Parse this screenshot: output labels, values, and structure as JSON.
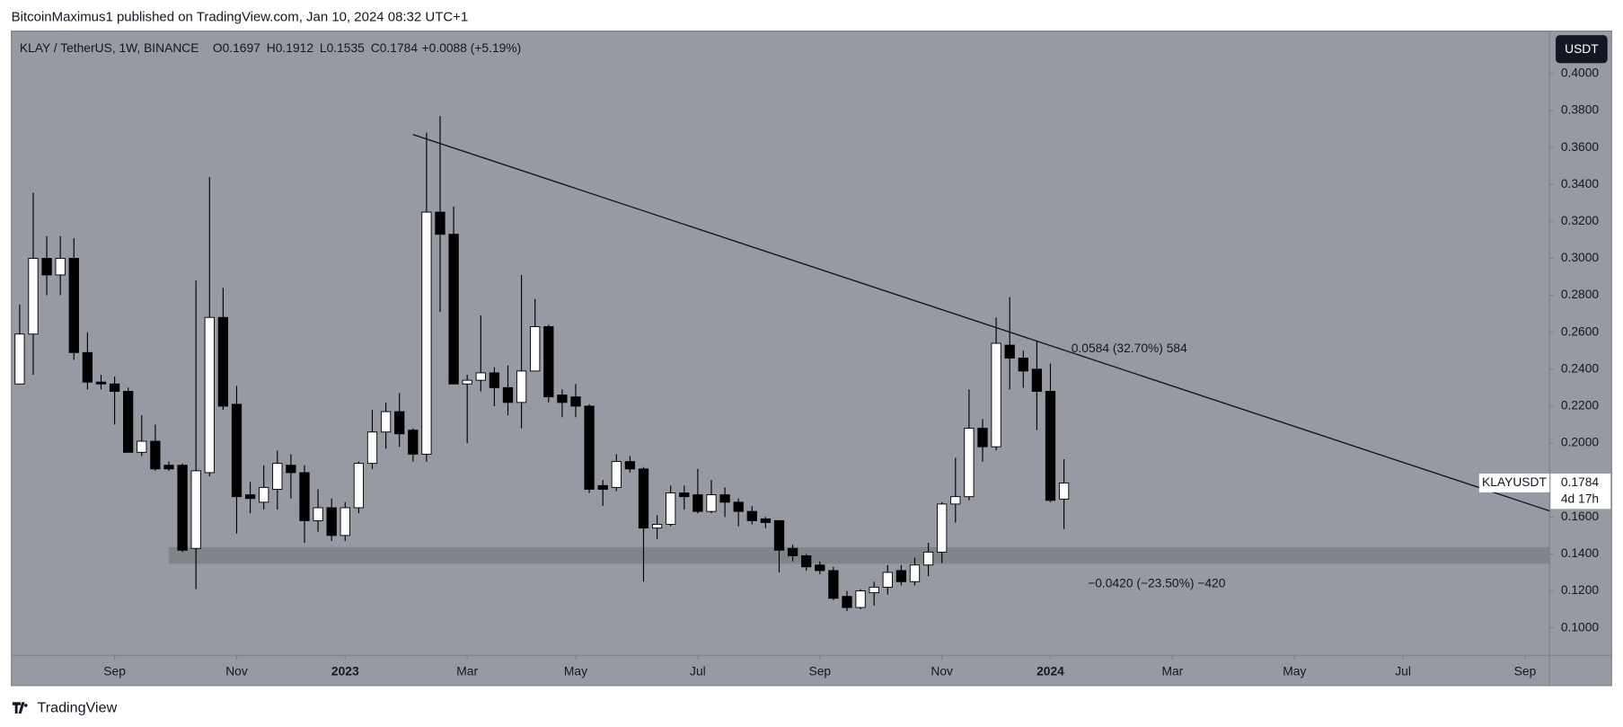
{
  "header": {
    "text": "BitcoinMaximus1 published on TradingView.com, Jan 10, 2024 08:32 UTC+1"
  },
  "footer": {
    "brand": "TradingView"
  },
  "currency_button": "USDT",
  "legend": {
    "symbol": "KLAY / TetherUS, 1W, BINANCE",
    "fields": [
      {
        "key": "O",
        "value": "0.1697"
      },
      {
        "key": "H",
        "value": "0.1912"
      },
      {
        "key": "L",
        "value": "0.1535"
      },
      {
        "key": "C",
        "value": "0.1784"
      }
    ],
    "change": "+0.0088 (+5.19%)"
  },
  "last_price": {
    "symbol": "KLAYUSDT",
    "price": "0.1784",
    "countdown": "4d 17h"
  },
  "chart_data": {
    "type": "candlestick",
    "bull_color": "#ffffff",
    "bear_color": "#000000",
    "open": [
      0.232,
      0.259,
      0.3,
      0.291,
      0.3,
      0.249,
      0.233,
      0.232,
      0.228,
      0.195,
      0.201,
      0.188,
      0.188,
      0.143,
      0.184,
      0.268,
      0.221,
      0.172,
      0.168,
      0.175,
      0.188,
      0.184,
      0.158,
      0.165,
      0.15,
      0.165,
      0.189,
      0.206,
      0.217,
      0.207,
      0.194,
      0.325,
      0.313,
      0.232,
      0.234,
      0.238,
      0.23,
      0.222,
      0.239,
      0.263,
      0.226,
      0.225,
      0.22,
      0.177,
      0.176,
      0.19,
      0.186,
      0.154,
      0.156,
      0.173,
      0.172,
      0.163,
      0.172,
      0.168,
      0.163,
      0.159,
      0.158,
      0.143,
      0.139,
      0.134,
      0.131,
      0.117,
      0.111,
      0.119,
      0.122,
      0.131,
      0.125,
      0.134,
      0.141,
      0.167,
      0.171,
      0.208,
      0.198,
      0.253,
      0.246,
      0.24,
      0.228,
      0.1697
    ],
    "high": [
      0.275,
      0.3355,
      0.312,
      0.312,
      0.311,
      0.26,
      0.237,
      0.236,
      0.23,
      0.215,
      0.21,
      0.19,
      0.189,
      0.288,
      0.344,
      0.284,
      0.231,
      0.179,
      0.188,
      0.196,
      0.194,
      0.188,
      0.175,
      0.17,
      0.168,
      0.19,
      0.218,
      0.222,
      0.227,
      0.208,
      0.368,
      0.377,
      0.328,
      0.237,
      0.269,
      0.241,
      0.242,
      0.291,
      0.278,
      0.264,
      0.229,
      0.232,
      0.221,
      0.18,
      0.194,
      0.193,
      0.187,
      0.161,
      0.177,
      0.177,
      0.186,
      0.18,
      0.176,
      0.17,
      0.166,
      0.16,
      0.158,
      0.145,
      0.14,
      0.136,
      0.133,
      0.12,
      0.121,
      0.125,
      0.134,
      0.134,
      0.138,
      0.146,
      0.168,
      0.192,
      0.229,
      0.213,
      0.268,
      0.279,
      0.25,
      0.255,
      0.243,
      0.1912
    ],
    "low": [
      0.232,
      0.237,
      0.28,
      0.28,
      0.245,
      0.229,
      0.229,
      0.21,
      0.195,
      0.193,
      0.185,
      0.185,
      0.141,
      0.121,
      0.182,
      0.218,
      0.151,
      0.162,
      0.164,
      0.164,
      0.17,
      0.146,
      0.152,
      0.147,
      0.147,
      0.162,
      0.186,
      0.197,
      0.198,
      0.19,
      0.19,
      0.271,
      0.232,
      0.2,
      0.228,
      0.22,
      0.215,
      0.208,
      0.239,
      0.222,
      0.214,
      0.214,
      0.173,
      0.166,
      0.174,
      0.184,
      0.125,
      0.148,
      0.155,
      0.164,
      0.162,
      0.162,
      0.16,
      0.155,
      0.156,
      0.154,
      0.13,
      0.136,
      0.131,
      0.129,
      0.115,
      0.109,
      0.11,
      0.112,
      0.118,
      0.123,
      0.123,
      0.128,
      0.135,
      0.157,
      0.169,
      0.19,
      0.196,
      0.229,
      0.23,
      0.207,
      0.168,
      0.1535
    ],
    "close": [
      0.259,
      0.3,
      0.291,
      0.3,
      0.249,
      0.233,
      0.232,
      0.228,
      0.195,
      0.201,
      0.186,
      0.186,
      0.142,
      0.185,
      0.268,
      0.22,
      0.171,
      0.17,
      0.176,
      0.189,
      0.184,
      0.158,
      0.165,
      0.15,
      0.165,
      0.189,
      0.206,
      0.217,
      0.205,
      0.194,
      0.325,
      0.313,
      0.232,
      0.234,
      0.238,
      0.23,
      0.222,
      0.239,
      0.263,
      0.225,
      0.222,
      0.22,
      0.175,
      0.175,
      0.19,
      0.186,
      0.154,
      0.156,
      0.173,
      0.171,
      0.163,
      0.172,
      0.168,
      0.163,
      0.158,
      0.157,
      0.142,
      0.139,
      0.133,
      0.131,
      0.116,
      0.111,
      0.12,
      0.122,
      0.13,
      0.125,
      0.134,
      0.141,
      0.167,
      0.171,
      0.208,
      0.198,
      0.254,
      0.246,
      0.239,
      0.228,
      0.169,
      0.1784
    ],
    "xlim": [
      -0.61,
      112.8
    ],
    "xticks": [
      {
        "value": 7,
        "label": "Sep"
      },
      {
        "value": 16,
        "label": "Nov"
      },
      {
        "value": 24,
        "label": "2023"
      },
      {
        "value": 33,
        "label": "Mar"
      },
      {
        "value": 41,
        "label": "May"
      },
      {
        "value": 50,
        "label": "Jul"
      },
      {
        "value": 59,
        "label": "Sep"
      },
      {
        "value": 68,
        "label": "Nov"
      },
      {
        "value": 76,
        "label": "2024"
      },
      {
        "value": 85,
        "label": "Mar"
      },
      {
        "value": 94,
        "label": "May"
      },
      {
        "value": 102,
        "label": "Jul"
      },
      {
        "value": 111,
        "label": "Sep"
      }
    ],
    "ylim": [
      0.085,
      0.423
    ],
    "yticks": [
      {
        "value": 0.1,
        "label": "0.1000"
      },
      {
        "value": 0.12,
        "label": "0.1200"
      },
      {
        "value": 0.14,
        "label": "0.1400"
      },
      {
        "value": 0.16,
        "label": "0.1600"
      },
      {
        "value": 0.18,
        "label": "0.1800"
      },
      {
        "value": 0.2,
        "label": "0.2000"
      },
      {
        "value": 0.22,
        "label": "0.2200"
      },
      {
        "value": 0.24,
        "label": "0.2400"
      },
      {
        "value": 0.26,
        "label": "0.2600"
      },
      {
        "value": 0.28,
        "label": "0.2800"
      },
      {
        "value": 0.3,
        "label": "0.3000"
      },
      {
        "value": 0.32,
        "label": "0.3200"
      },
      {
        "value": 0.34,
        "label": "0.3400"
      },
      {
        "value": 0.36,
        "label": "0.3600"
      },
      {
        "value": 0.38,
        "label": "0.3800"
      },
      {
        "value": 0.4,
        "label": "0.4000"
      }
    ],
    "trendline": {
      "x": [
        29,
        112.8
      ],
      "y": [
        0.367,
        0.1633
      ]
    },
    "support_zone": {
      "x": 11,
      "y": [
        0.1347,
        0.1437
      ]
    },
    "annotations": [
      "0.0584 (32.70%) 584",
      "−0.0420 (−23.50%) −420"
    ]
  }
}
